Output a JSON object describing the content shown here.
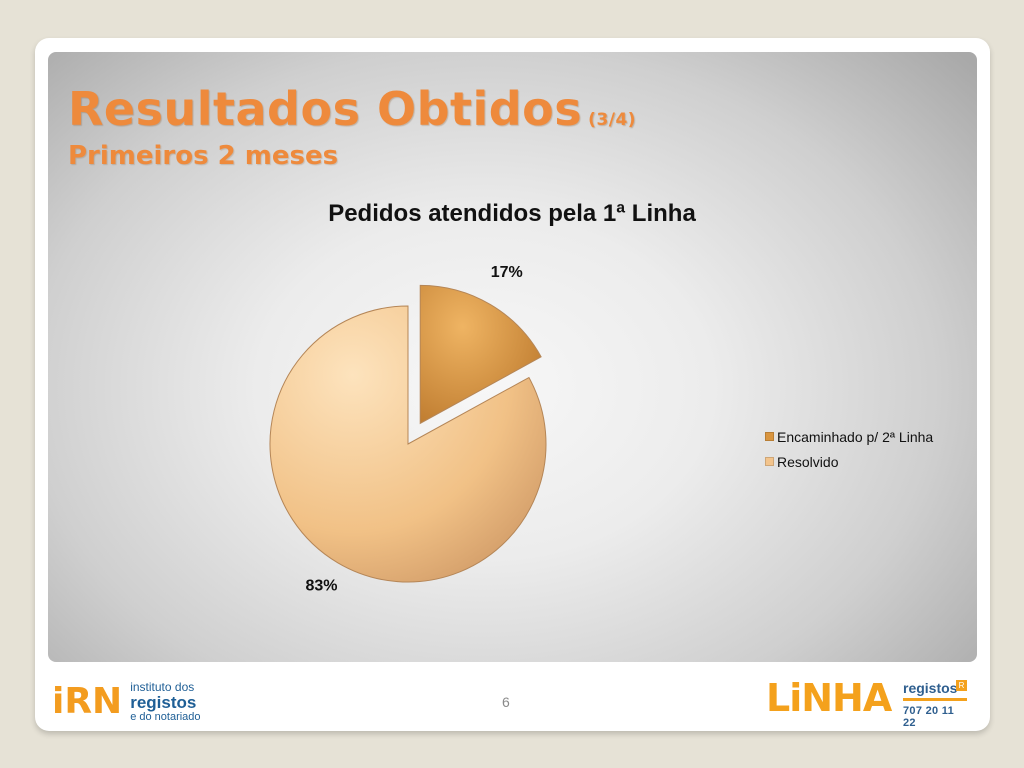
{
  "slide": {
    "title": "Resultados Obtidos",
    "title_part": "(3/4)",
    "subtitle": "Primeiros 2 meses",
    "page_number": "6",
    "title_color": "#ee8a3c"
  },
  "chart_data": {
    "type": "pie",
    "title": "Pedidos atendidos pela 1ª Linha",
    "categories": [
      "Encaminhado p/ 2ª Linha",
      "Resolvido"
    ],
    "values": [
      17,
      83
    ],
    "data_labels": [
      "17%",
      "83%"
    ],
    "exploded": [
      true,
      false
    ],
    "colors": [
      "#d9953f",
      "#f3c48c"
    ],
    "legend_position": "right"
  },
  "footer": {
    "irn_logo": {
      "mark": "iRN",
      "line1": "instituto dos",
      "line2": "registos",
      "line3": "e do notariado"
    },
    "linha_logo": {
      "word": "LiNHA",
      "registos": "registos",
      "badge": "R",
      "phone": "707 20 11 22"
    }
  }
}
